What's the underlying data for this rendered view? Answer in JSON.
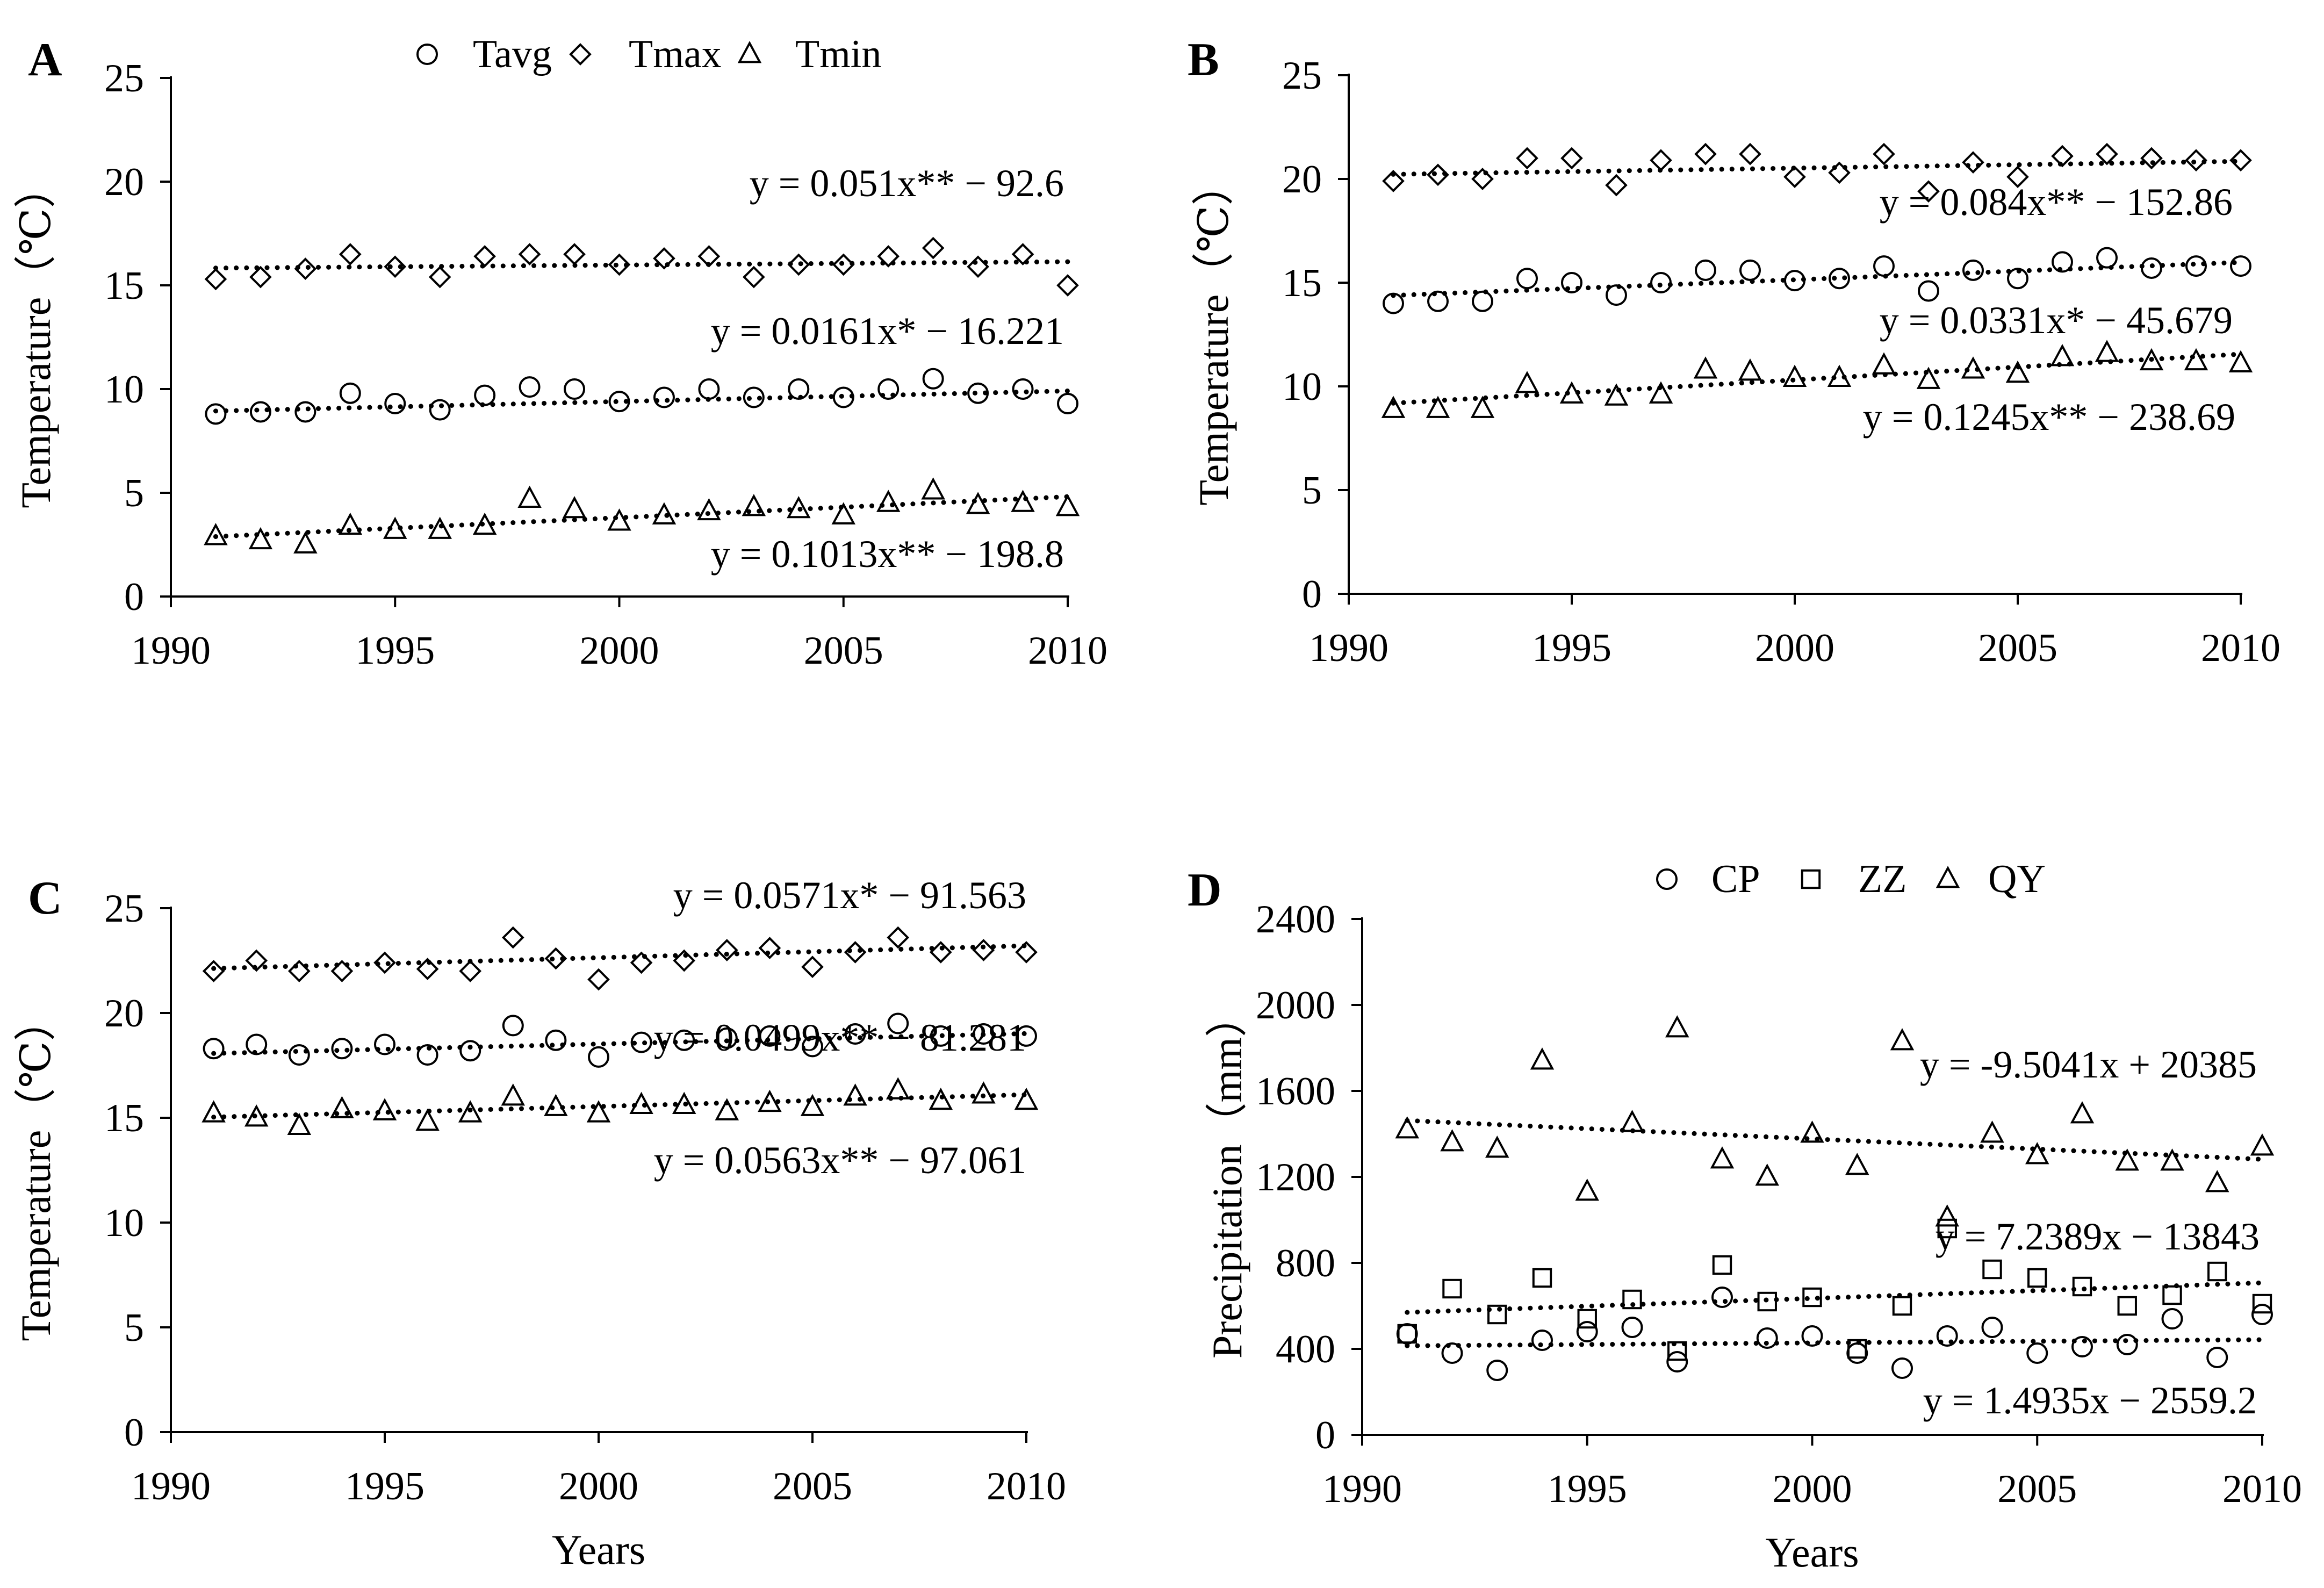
{
  "figure": {
    "panels": [
      "A",
      "B",
      "C",
      "D"
    ]
  },
  "chart_data": [
    {
      "panel": "A",
      "type": "scatter",
      "title": "",
      "xlabel": "",
      "ylabel": "Temperature（℃）",
      "xlim": [
        1990,
        2010
      ],
      "ylim": [
        0,
        25
      ],
      "xticks": [
        1990,
        1995,
        2000,
        2005,
        2010
      ],
      "yticks": [
        0,
        5,
        10,
        15,
        20,
        25
      ],
      "legend": [
        "Tavg",
        "Tmax",
        "Tmin"
      ],
      "legend_position": "top-center",
      "x": [
        1991,
        1992,
        1993,
        1994,
        1995,
        1996,
        1997,
        1998,
        1999,
        2000,
        2001,
        2002,
        2003,
        2004,
        2005,
        2006,
        2007,
        2008,
        2009,
        2010
      ],
      "series": [
        {
          "name": "Tavg",
          "marker": "circle",
          "values": [
            8.8,
            8.9,
            8.9,
            9.8,
            9.3,
            9.0,
            9.7,
            10.1,
            10.0,
            9.4,
            9.6,
            10.0,
            9.6,
            10.0,
            9.6,
            10.0,
            10.5,
            9.8,
            10.0,
            9.3
          ],
          "trend": {
            "slope": 0.051,
            "intercept": -92.6
          },
          "equation": "y = 0.051x** − 92.6"
        },
        {
          "name": "Tmax",
          "marker": "diamond",
          "values": [
            15.3,
            15.4,
            15.8,
            16.5,
            15.9,
            15.4,
            16.4,
            16.5,
            16.5,
            16.0,
            16.3,
            16.4,
            15.4,
            16.0,
            16.0,
            16.4,
            16.8,
            15.9,
            16.5,
            15.0
          ],
          "trend": {
            "slope": 0.0161,
            "intercept": -16.221
          },
          "equation": "y = 0.0161x* − 16.221"
        },
        {
          "name": "Tmin",
          "marker": "triangle",
          "values": [
            2.9,
            2.7,
            2.5,
            3.4,
            3.2,
            3.2,
            3.4,
            4.7,
            4.2,
            3.6,
            3.9,
            4.1,
            4.3,
            4.2,
            3.9,
            4.5,
            5.1,
            4.4,
            4.5,
            4.3
          ],
          "trend": {
            "slope": 0.1013,
            "intercept": -198.8
          },
          "equation": "y = 0.1013x** − 198.8"
        }
      ]
    },
    {
      "panel": "B",
      "type": "scatter",
      "title": "",
      "xlabel": "",
      "ylabel": "Temperature（℃）",
      "xlim": [
        1990,
        2010
      ],
      "ylim": [
        0,
        25
      ],
      "xticks": [
        1990,
        1995,
        2000,
        2005,
        2010
      ],
      "yticks": [
        0,
        5,
        10,
        15,
        20,
        25
      ],
      "x": [
        1991,
        1992,
        1993,
        1994,
        1995,
        1996,
        1997,
        1998,
        1999,
        2000,
        2001,
        2002,
        2003,
        2004,
        2005,
        2006,
        2007,
        2008,
        2009,
        2010
      ],
      "series": [
        {
          "name": "Tavg",
          "marker": "circle",
          "values": [
            14.0,
            14.1,
            14.1,
            15.2,
            15.0,
            14.4,
            15.0,
            15.6,
            15.6,
            15.1,
            15.2,
            15.8,
            14.6,
            15.6,
            15.2,
            16.0,
            16.2,
            15.7,
            15.8,
            15.8
          ],
          "trend": {
            "slope": 0.084,
            "intercept": -152.86
          },
          "equation": "y = 0.084x** − 152.86"
        },
        {
          "name": "Tmax",
          "marker": "diamond",
          "values": [
            19.9,
            20.2,
            20.0,
            21.0,
            21.0,
            19.7,
            20.9,
            21.2,
            21.2,
            20.1,
            20.3,
            21.2,
            19.4,
            20.8,
            20.1,
            21.1,
            21.2,
            21.0,
            20.9,
            20.9
          ],
          "trend": {
            "slope": 0.0331,
            "intercept": -45.679
          },
          "equation": "y = 0.0331x* − 45.679"
        },
        {
          "name": "Tmin",
          "marker": "triangle",
          "values": [
            8.9,
            8.9,
            8.9,
            10.1,
            9.6,
            9.5,
            9.6,
            10.8,
            10.7,
            10.4,
            10.4,
            11.0,
            10.3,
            10.8,
            10.6,
            11.4,
            11.6,
            11.2,
            11.2,
            11.1
          ],
          "trend": {
            "slope": 0.1245,
            "intercept": -238.69
          },
          "equation": "y = 0.1245x** − 238.69"
        }
      ]
    },
    {
      "panel": "C",
      "type": "scatter",
      "title": "",
      "xlabel": "Years",
      "ylabel": "Temperature（℃）",
      "xlim": [
        1990,
        2010
      ],
      "ylim": [
        0,
        25
      ],
      "xticks": [
        1990,
        1995,
        2000,
        2005,
        2010
      ],
      "yticks": [
        0,
        5,
        10,
        15,
        20,
        25
      ],
      "x": [
        1991,
        1992,
        1993,
        1994,
        1995,
        1996,
        1997,
        1998,
        1999,
        2000,
        2001,
        2002,
        2003,
        2004,
        2005,
        2006,
        2007,
        2008,
        2009,
        2010
      ],
      "series": [
        {
          "name": "Tavg",
          "marker": "circle",
          "values": [
            18.3,
            18.5,
            18.0,
            18.3,
            18.5,
            18.0,
            18.2,
            19.4,
            18.7,
            17.9,
            18.6,
            18.7,
            18.8,
            18.9,
            18.4,
            19.0,
            19.5,
            18.9,
            19.0,
            18.9
          ],
          "trend": {
            "slope": 0.0499,
            "intercept": -81.281
          },
          "equation": "y = 0.0499x** − 81.281"
        },
        {
          "name": "Tmax",
          "marker": "diamond",
          "values": [
            22.0,
            22.5,
            22.0,
            22.0,
            22.4,
            22.1,
            22.0,
            23.6,
            22.6,
            21.6,
            22.4,
            22.5,
            23.0,
            23.1,
            22.2,
            22.9,
            23.6,
            22.9,
            23.0,
            22.9
          ],
          "trend": {
            "slope": 0.0571,
            "intercept": -91.563
          },
          "equation": "y = 0.0571x* − 91.563"
        },
        {
          "name": "Tmin",
          "marker": "triangle",
          "values": [
            15.2,
            15.0,
            14.6,
            15.4,
            15.3,
            14.8,
            15.2,
            16.0,
            15.5,
            15.2,
            15.6,
            15.6,
            15.3,
            15.7,
            15.5,
            16.0,
            16.3,
            15.8,
            16.1,
            15.8
          ],
          "trend": {
            "slope": 0.0563,
            "intercept": -97.061
          },
          "equation": "y = 0.0563x** − 97.061"
        }
      ]
    },
    {
      "panel": "D",
      "type": "scatter",
      "title": "",
      "xlabel": "Years",
      "ylabel": "Precipitation（mm）",
      "xlim": [
        1990,
        2010
      ],
      "ylim": [
        0,
        2400
      ],
      "xticks": [
        1990,
        1995,
        2000,
        2005,
        2010
      ],
      "yticks": [
        0,
        400,
        800,
        1200,
        1600,
        2000,
        2400
      ],
      "legend": [
        "CP",
        "ZZ",
        "QY"
      ],
      "legend_position": "top-center",
      "x": [
        1991,
        1992,
        1993,
        1994,
        1995,
        1996,
        1997,
        1998,
        1999,
        2000,
        2001,
        2002,
        2003,
        2004,
        2005,
        2006,
        2007,
        2008,
        2009,
        2010
      ],
      "series": [
        {
          "name": "CP",
          "marker": "circle",
          "values": [
            470,
            380,
            300,
            440,
            480,
            500,
            340,
            640,
            450,
            460,
            380,
            310,
            460,
            500,
            380,
            410,
            420,
            540,
            360,
            560
          ],
          "trend": {
            "slope": 1.4935,
            "intercept": -2559.2
          },
          "equation": "y = 1.4935x − 2559.2"
        },
        {
          "name": "ZZ",
          "marker": "square",
          "values": [
            470,
            680,
            560,
            730,
            540,
            630,
            390,
            790,
            620,
            640,
            400,
            600,
            960,
            770,
            730,
            690,
            600,
            650,
            760,
            610
          ],
          "trend": {
            "slope": 7.2389,
            "intercept": -13843
          },
          "equation": "y = 7.2389x − 13843"
        },
        {
          "name": "QY",
          "marker": "triangle",
          "values": [
            1420,
            1360,
            1330,
            1740,
            1130,
            1450,
            1890,
            1280,
            1200,
            1400,
            1250,
            1830,
            1010,
            1400,
            1300,
            1490,
            1270,
            1270,
            1170,
            1340
          ],
          "trend": {
            "slope": -9.5041,
            "intercept": 20385
          },
          "equation": "y = -9.5041x + 20385"
        }
      ]
    }
  ]
}
